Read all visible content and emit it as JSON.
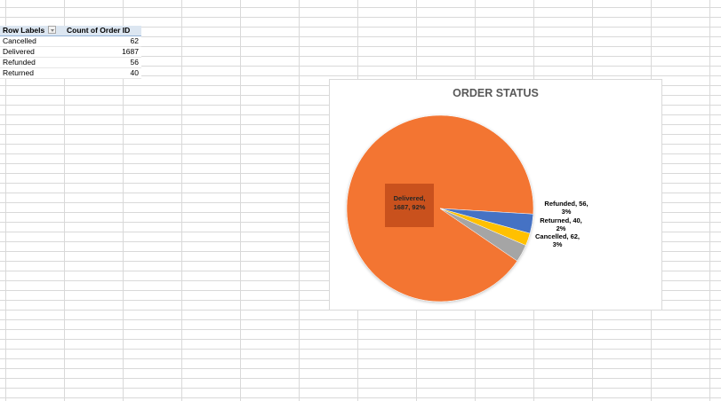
{
  "pivot": {
    "headers": [
      "Row Labels",
      "Count of Order ID"
    ],
    "rows": [
      {
        "label": "Cancelled",
        "value": "62"
      },
      {
        "label": "Delivered",
        "value": "1687"
      },
      {
        "label": "Refunded",
        "value": "56"
      },
      {
        "label": "Returned",
        "value": "40"
      }
    ]
  },
  "chart_data": {
    "type": "pie",
    "title": "ORDER STATUS",
    "slices": [
      {
        "name": "Delivered",
        "value": 1687,
        "percent": "92%",
        "color": "#f37533",
        "label_lines": [
          "Delivered,",
          "1687, 92%"
        ]
      },
      {
        "name": "Cancelled",
        "value": 62,
        "percent": "3%",
        "color": "#4472c4",
        "label_lines": [
          "Cancelled, 62,",
          "3%"
        ]
      },
      {
        "name": "Returned",
        "value": 40,
        "percent": "2%",
        "color": "#ffc000",
        "label_lines": [
          "Returned, 40,",
          "2%"
        ]
      },
      {
        "name": "Refunded",
        "value": 56,
        "percent": "3%",
        "color": "#a5a5a5",
        "label_lines": [
          "Refunded, 56,",
          "3%"
        ]
      }
    ]
  }
}
